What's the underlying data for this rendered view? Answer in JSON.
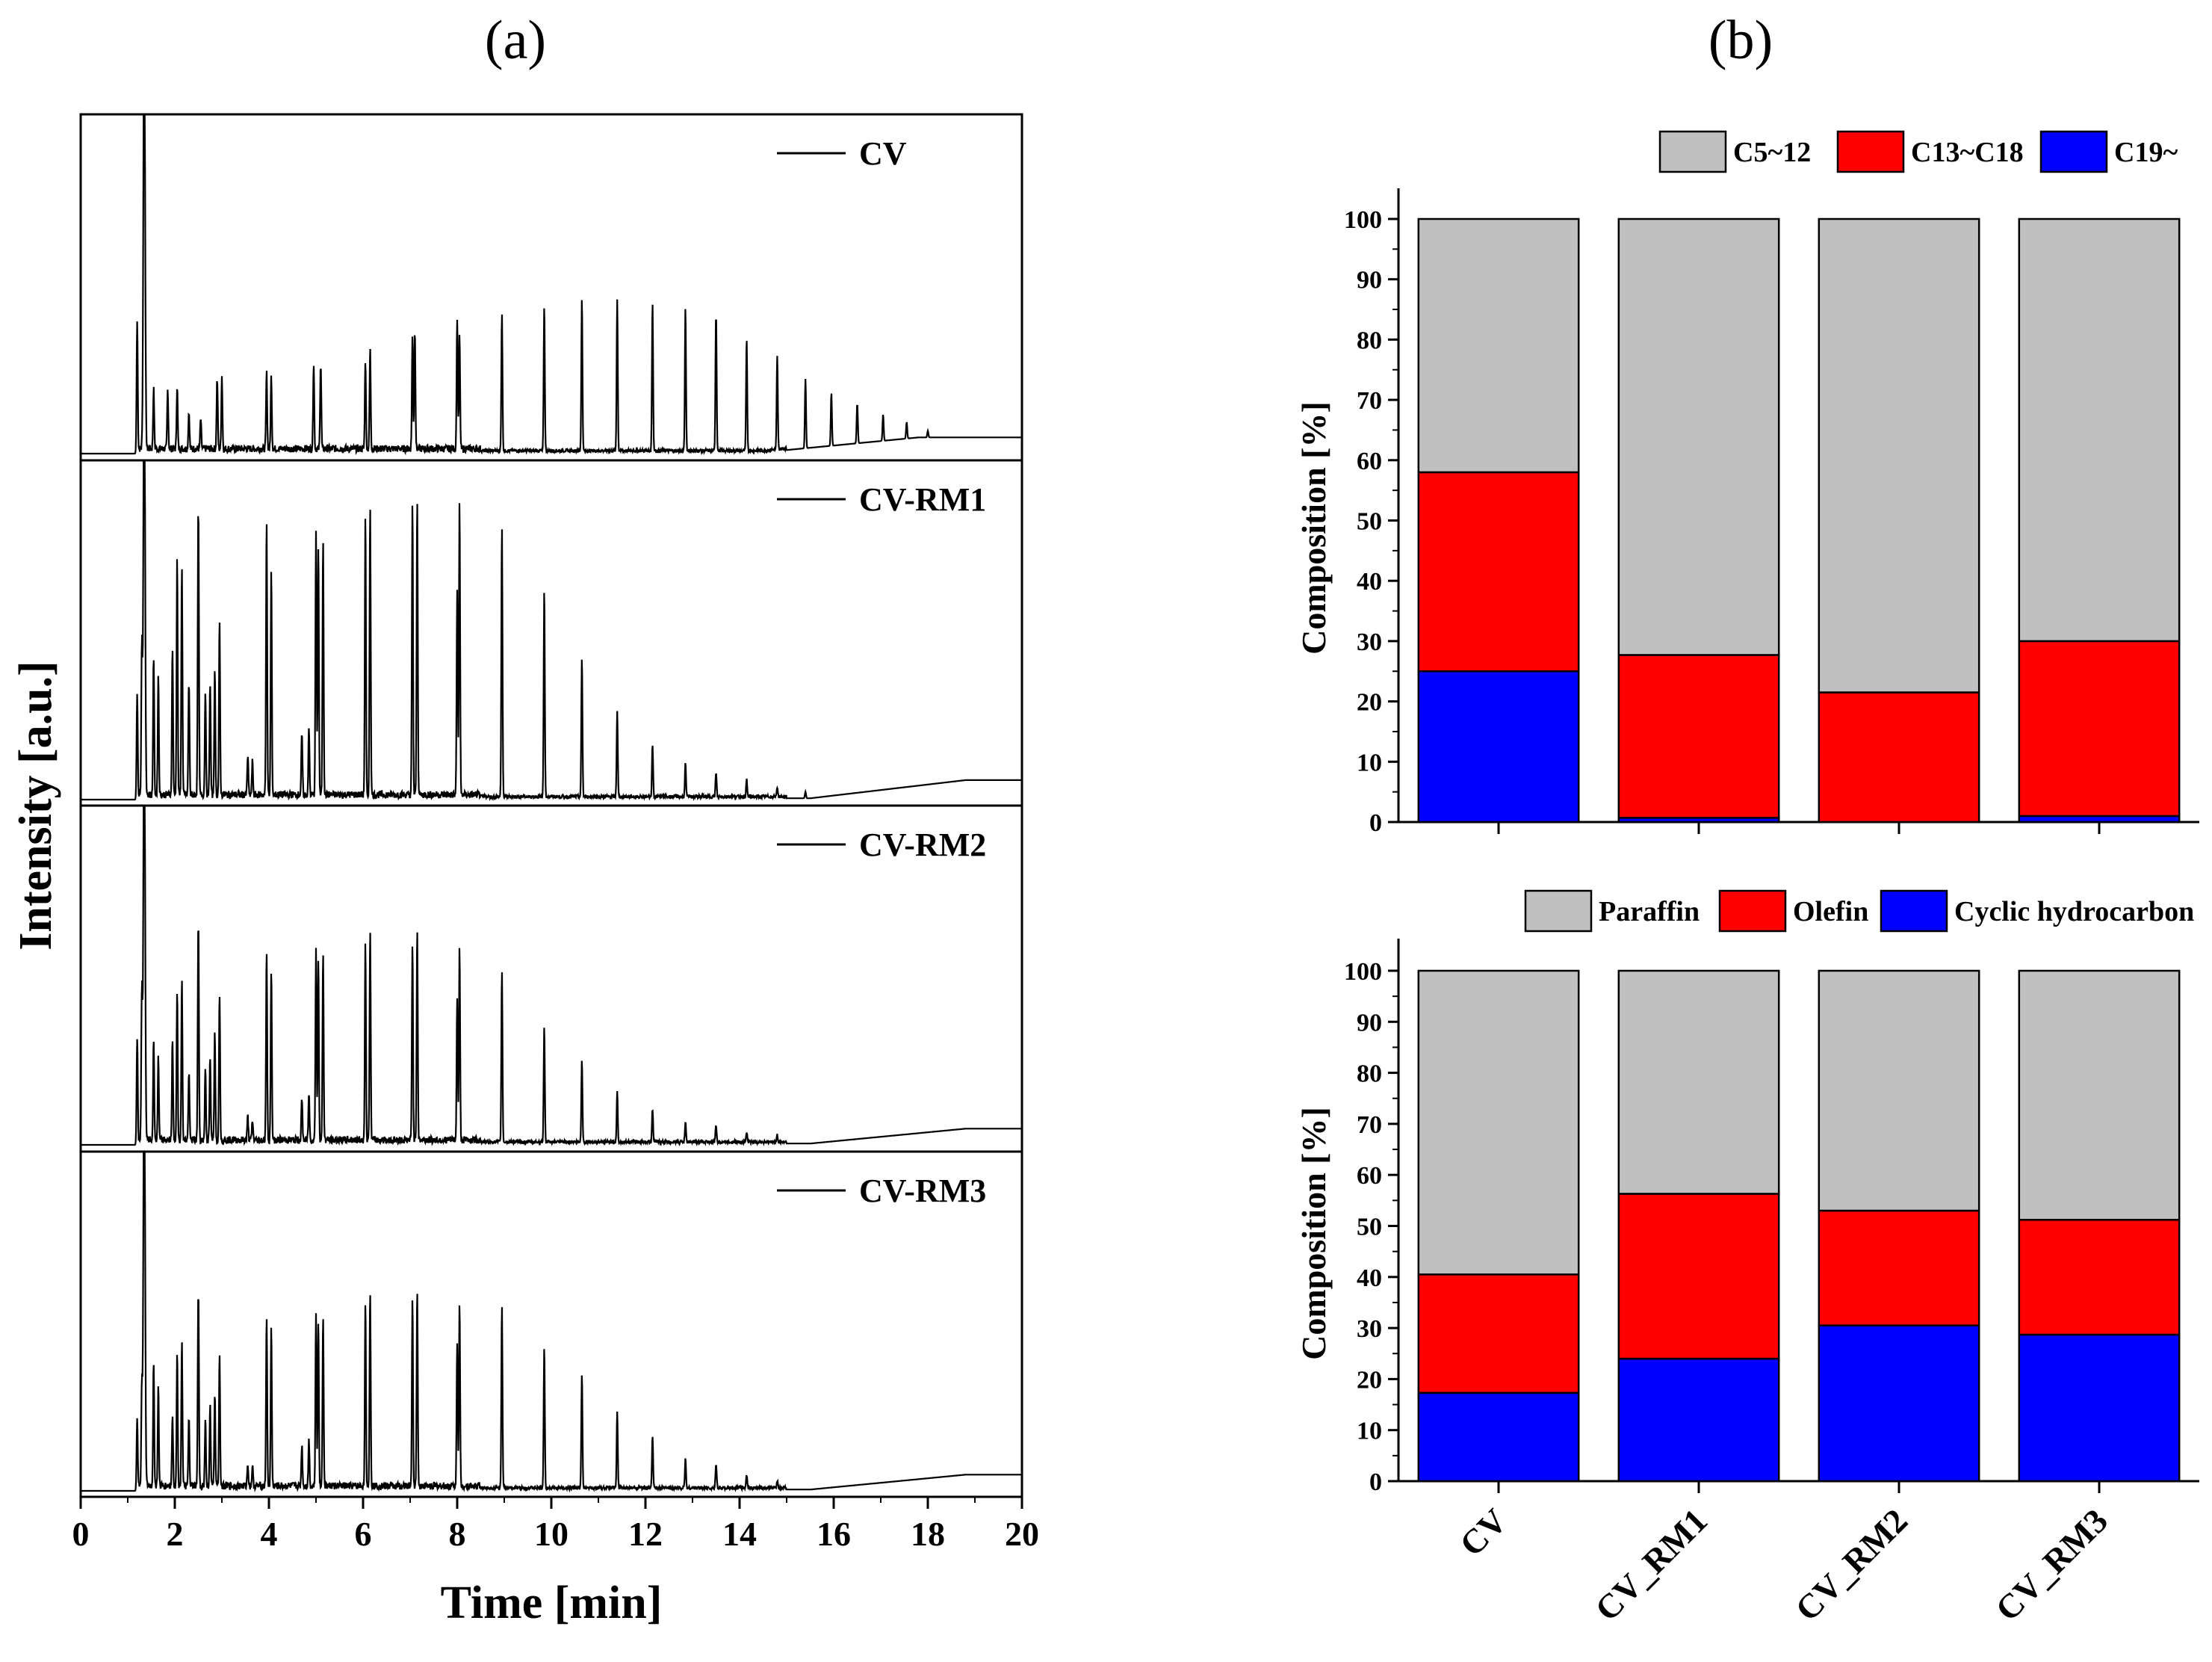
{
  "figure": {
    "panel_a_label": "(a)",
    "panel_b_label": "(b)"
  },
  "chart_data": [
    {
      "type": "line",
      "panel": "a",
      "title": "",
      "xlabel": "Time [min]",
      "ylabel": "Intensity [a.u.]",
      "xlim": [
        0,
        20
      ],
      "xticks": [
        "0",
        "2",
        "4",
        "6",
        "8",
        "10",
        "12",
        "14",
        "16",
        "18",
        "20"
      ],
      "yticks_shown": false,
      "solvent_peak_min": 1.35,
      "series": [
        {
          "name": "CV",
          "legend": "CV",
          "baseline_rise_start": 14.5,
          "baseline_rise_level": 0.045,
          "peaks": [
            [
              1.2,
              0.4
            ],
            [
              1.55,
              0.18
            ],
            [
              1.85,
              0.18
            ],
            [
              2.05,
              0.19
            ],
            [
              2.3,
              0.11
            ],
            [
              2.55,
              0.09
            ],
            [
              2.9,
              0.21
            ],
            [
              3.0,
              0.22
            ],
            [
              3.95,
              0.23
            ],
            [
              4.05,
              0.22
            ],
            [
              4.95,
              0.26
            ],
            [
              5.1,
              0.26
            ],
            [
              6.05,
              0.27
            ],
            [
              6.15,
              0.3
            ],
            [
              7.05,
              0.34
            ],
            [
              7.1,
              0.36
            ],
            [
              8.0,
              0.4
            ],
            [
              8.05,
              0.34
            ],
            [
              8.95,
              0.42
            ],
            [
              9.85,
              0.44
            ],
            [
              10.65,
              0.46
            ],
            [
              11.4,
              0.46
            ],
            [
              12.15,
              0.45
            ],
            [
              12.85,
              0.43
            ],
            [
              13.5,
              0.42
            ],
            [
              14.15,
              0.34
            ],
            [
              14.8,
              0.28
            ],
            [
              15.4,
              0.21
            ],
            [
              15.95,
              0.16
            ],
            [
              16.5,
              0.12
            ],
            [
              17.05,
              0.08
            ],
            [
              17.55,
              0.05
            ],
            [
              18.0,
              0.02
            ]
          ]
        },
        {
          "name": "CV-RM1",
          "legend": "CV-RM1",
          "baseline_rise_start": 15.5,
          "baseline_rise_level": 0.055,
          "peaks": [
            [
              1.2,
              0.32
            ],
            [
              1.3,
              0.45
            ],
            [
              1.55,
              0.42
            ],
            [
              1.65,
              0.36
            ],
            [
              1.95,
              0.45
            ],
            [
              2.05,
              0.72
            ],
            [
              2.15,
              0.7
            ],
            [
              2.3,
              0.34
            ],
            [
              2.5,
              0.88
            ],
            [
              2.65,
              0.32
            ],
            [
              2.75,
              0.34
            ],
            [
              2.85,
              0.37
            ],
            [
              2.95,
              0.52
            ],
            [
              3.55,
              0.12
            ],
            [
              3.65,
              0.1
            ],
            [
              3.95,
              0.84
            ],
            [
              4.05,
              0.68
            ],
            [
              4.7,
              0.18
            ],
            [
              4.85,
              0.2
            ],
            [
              5.0,
              0.8
            ],
            [
              5.05,
              0.76
            ],
            [
              5.15,
              0.78
            ],
            [
              6.05,
              0.84
            ],
            [
              6.15,
              0.88
            ],
            [
              7.05,
              0.88
            ],
            [
              7.15,
              0.9
            ],
            [
              8.0,
              0.62
            ],
            [
              8.05,
              0.89
            ],
            [
              8.95,
              0.82
            ],
            [
              9.85,
              0.63
            ],
            [
              10.65,
              0.42
            ],
            [
              11.4,
              0.26
            ],
            [
              12.15,
              0.16
            ],
            [
              12.85,
              0.1
            ],
            [
              13.5,
              0.07
            ],
            [
              14.15,
              0.05
            ],
            [
              14.8,
              0.03
            ],
            [
              15.4,
              0.02
            ]
          ]
        },
        {
          "name": "CV-RM2",
          "legend": "CV-RM2",
          "baseline_rise_start": 15.5,
          "baseline_rise_level": 0.045,
          "peaks": [
            [
              1.2,
              0.32
            ],
            [
              1.3,
              0.45
            ],
            [
              1.55,
              0.3
            ],
            [
              1.65,
              0.25
            ],
            [
              1.95,
              0.3
            ],
            [
              2.05,
              0.45
            ],
            [
              2.15,
              0.48
            ],
            [
              2.3,
              0.2
            ],
            [
              2.5,
              0.66
            ],
            [
              2.65,
              0.22
            ],
            [
              2.75,
              0.25
            ],
            [
              2.85,
              0.33
            ],
            [
              2.95,
              0.45
            ],
            [
              3.55,
              0.07
            ],
            [
              3.65,
              0.06
            ],
            [
              3.95,
              0.57
            ],
            [
              4.05,
              0.52
            ],
            [
              4.7,
              0.12
            ],
            [
              4.85,
              0.14
            ],
            [
              5.0,
              0.58
            ],
            [
              5.05,
              0.55
            ],
            [
              5.15,
              0.57
            ],
            [
              6.05,
              0.6
            ],
            [
              6.15,
              0.63
            ],
            [
              7.05,
              0.6
            ],
            [
              7.15,
              0.64
            ],
            [
              8.0,
              0.43
            ],
            [
              8.05,
              0.58
            ],
            [
              8.95,
              0.52
            ],
            [
              9.85,
              0.35
            ],
            [
              10.65,
              0.25
            ],
            [
              11.4,
              0.15
            ],
            [
              12.15,
              0.1
            ],
            [
              12.85,
              0.06
            ],
            [
              13.5,
              0.05
            ],
            [
              14.15,
              0.03
            ],
            [
              14.8,
              0.02
            ]
          ]
        },
        {
          "name": "CV-RM3",
          "legend": "CV-RM3",
          "baseline_rise_start": 15.5,
          "baseline_rise_level": 0.045,
          "peaks": [
            [
              1.2,
              0.22
            ],
            [
              1.3,
              0.3
            ],
            [
              1.55,
              0.38
            ],
            [
              1.65,
              0.3
            ],
            [
              1.95,
              0.22
            ],
            [
              2.05,
              0.4
            ],
            [
              2.15,
              0.44
            ],
            [
              2.3,
              0.2
            ],
            [
              2.5,
              0.6
            ],
            [
              2.65,
              0.2
            ],
            [
              2.75,
              0.24
            ],
            [
              2.85,
              0.28
            ],
            [
              2.95,
              0.4
            ],
            [
              3.55,
              0.07
            ],
            [
              3.65,
              0.06
            ],
            [
              3.95,
              0.52
            ],
            [
              4.05,
              0.48
            ],
            [
              4.7,
              0.12
            ],
            [
              4.85,
              0.14
            ],
            [
              5.0,
              0.53
            ],
            [
              5.05,
              0.5
            ],
            [
              5.15,
              0.52
            ],
            [
              6.05,
              0.55
            ],
            [
              6.15,
              0.59
            ],
            [
              7.05,
              0.56
            ],
            [
              7.15,
              0.6
            ],
            [
              8.0,
              0.44
            ],
            [
              8.05,
              0.55
            ],
            [
              8.95,
              0.55
            ],
            [
              9.85,
              0.43
            ],
            [
              10.65,
              0.35
            ],
            [
              11.4,
              0.23
            ],
            [
              12.15,
              0.16
            ],
            [
              12.85,
              0.09
            ],
            [
              13.5,
              0.07
            ],
            [
              14.15,
              0.04
            ],
            [
              14.8,
              0.02
            ]
          ]
        }
      ]
    },
    {
      "type": "bar",
      "stacked": true,
      "panel": "b-top",
      "title": "",
      "xlabel": "",
      "ylabel": "Composition [%]",
      "ylim": [
        0,
        100
      ],
      "yticks": [
        "0",
        "10",
        "20",
        "30",
        "40",
        "50",
        "60",
        "70",
        "80",
        "90",
        "100"
      ],
      "categories": [
        "CV",
        "CV_RM1",
        "CV_RM2",
        "CV_RM3"
      ],
      "legend_position": "top-right",
      "series": [
        {
          "name": "C19~",
          "color": "#0000ff",
          "values": [
            25,
            0.7,
            0,
            1
          ]
        },
        {
          "name": "C13~C18",
          "color": "#ff0000",
          "values": [
            33,
            27,
            21.5,
            29
          ]
        },
        {
          "name": "C5~12",
          "color": "#c0c0c0",
          "values": [
            42,
            72.3,
            78.5,
            70
          ]
        }
      ]
    },
    {
      "type": "bar",
      "stacked": true,
      "panel": "b-bottom",
      "title": "",
      "xlabel": "",
      "ylabel": "Composition [%]",
      "ylim": [
        0,
        100
      ],
      "yticks": [
        "0",
        "10",
        "20",
        "30",
        "40",
        "50",
        "60",
        "70",
        "80",
        "90",
        "100"
      ],
      "categories": [
        "CV",
        "CV_RM1",
        "CV_RM2",
        "CV_RM3"
      ],
      "legend_position": "top-right",
      "series": [
        {
          "name": "Cyclic hydrocarbon",
          "color": "#0000ff",
          "values": [
            17.3,
            24,
            30.5,
            28.7
          ]
        },
        {
          "name": "Olefin",
          "color": "#ff0000",
          "values": [
            23.2,
            32.3,
            22.5,
            22.5
          ]
        },
        {
          "name": "Paraffin",
          "color": "#c0c0c0",
          "values": [
            59.5,
            43.7,
            47,
            48.8
          ]
        }
      ]
    }
  ]
}
